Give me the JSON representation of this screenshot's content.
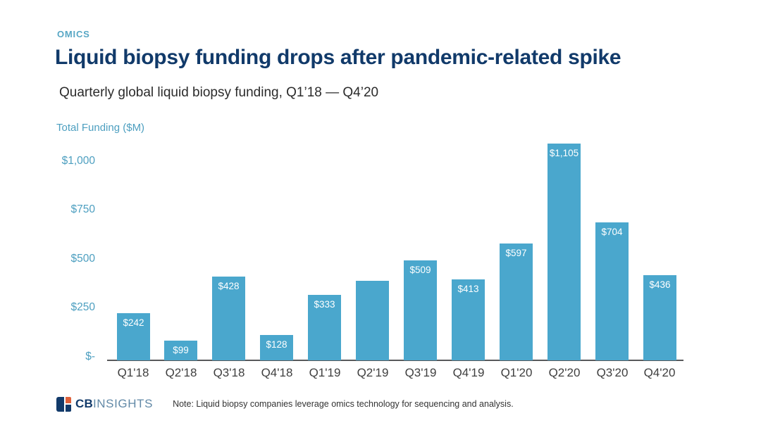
{
  "header": {
    "eyebrow": "OMICS"
  },
  "chart_data": {
    "type": "bar",
    "title": "Liquid biopsy funding drops after pandemic-related spike",
    "subtitle": "Quarterly global liquid biopsy funding, Q1’18 — Q4’20",
    "ylabel": "Total Funding ($M)",
    "xlabel": "",
    "categories": [
      "Q1'18",
      "Q2'18",
      "Q3'18",
      "Q4'18",
      "Q1'19",
      "Q2'19",
      "Q3'19",
      "Q4'19",
      "Q1'20",
      "Q2'20",
      "Q3'20",
      "Q4'20"
    ],
    "values": [
      242,
      99,
      428,
      128,
      333,
      405,
      509,
      413,
      597,
      1105,
      704,
      436
    ],
    "data_labels": [
      "$242",
      "$99",
      "$428",
      "$128",
      "$333",
      null,
      "$509",
      "$413",
      "$597",
      "$1,105",
      "$704",
      "$436"
    ],
    "y_ticks": [
      {
        "label": "$1,000",
        "value": 1000
      },
      {
        "label": "$750",
        "value": 750
      },
      {
        "label": "$500",
        "value": 500
      },
      {
        "label": "$250",
        "value": 250
      },
      {
        "label": "$-",
        "value": 0
      }
    ],
    "ylim": [
      0,
      1150
    ],
    "grid": false,
    "legend_position": "none",
    "bar_color": "#4aa7cd",
    "data_label_color": "#ffffff"
  },
  "footer": {
    "logo_cb": "CB",
    "logo_insights": "INSIGHTS",
    "note": "Note: Liquid biopsy companies leverage omics technology for sequencing and analysis."
  },
  "colors": {
    "accent_teal": "#58a7c5",
    "title_navy": "#113a6a",
    "axis_tick_teal": "#4d9fc0",
    "axis_line_gray": "#58595b",
    "x_label_gray": "#3f3f3f",
    "logo_orange": "#df613b",
    "logo_insights_blue": "#6289a7"
  }
}
